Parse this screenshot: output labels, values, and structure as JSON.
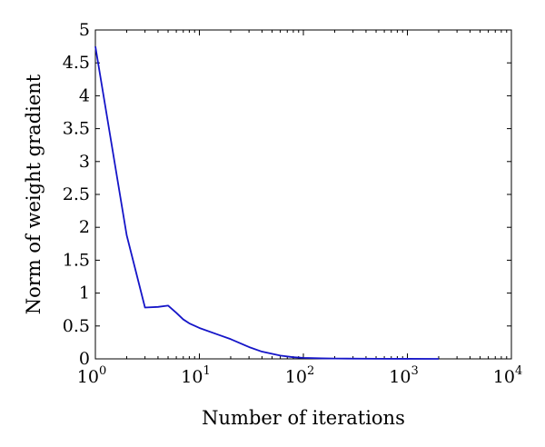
{
  "chart_data": {
    "type": "line",
    "title": "",
    "xlabel": "Number of iterations",
    "ylabel": "Norm of weight gradient",
    "xscale": "log",
    "xlim": [
      1,
      10000
    ],
    "ylim": [
      0,
      5
    ],
    "x_ticks": [
      {
        "base": "10",
        "exp": "0",
        "value": 1
      },
      {
        "base": "10",
        "exp": "1",
        "value": 10
      },
      {
        "base": "10",
        "exp": "2",
        "value": 100
      },
      {
        "base": "10",
        "exp": "3",
        "value": 1000
      },
      {
        "base": "10",
        "exp": "4",
        "value": 10000
      }
    ],
    "y_ticks": [
      "0",
      "0.5",
      "1",
      "1.5",
      "2",
      "2.5",
      "3",
      "3.5",
      "4",
      "4.5",
      "5"
    ],
    "grid": false,
    "legend": "none",
    "series": [
      {
        "color": "#1515c8",
        "x": [
          1,
          2,
          3,
          4,
          5,
          6,
          7,
          8,
          10,
          15,
          20,
          30,
          40,
          60,
          80,
          100,
          150,
          200,
          500,
          1000,
          2000
        ],
        "y": [
          4.75,
          1.88,
          0.78,
          0.79,
          0.81,
          0.7,
          0.6,
          0.54,
          0.47,
          0.37,
          0.3,
          0.18,
          0.11,
          0.05,
          0.025,
          0.015,
          0.008,
          0.005,
          0.002,
          0.001,
          0.0
        ]
      }
    ]
  }
}
